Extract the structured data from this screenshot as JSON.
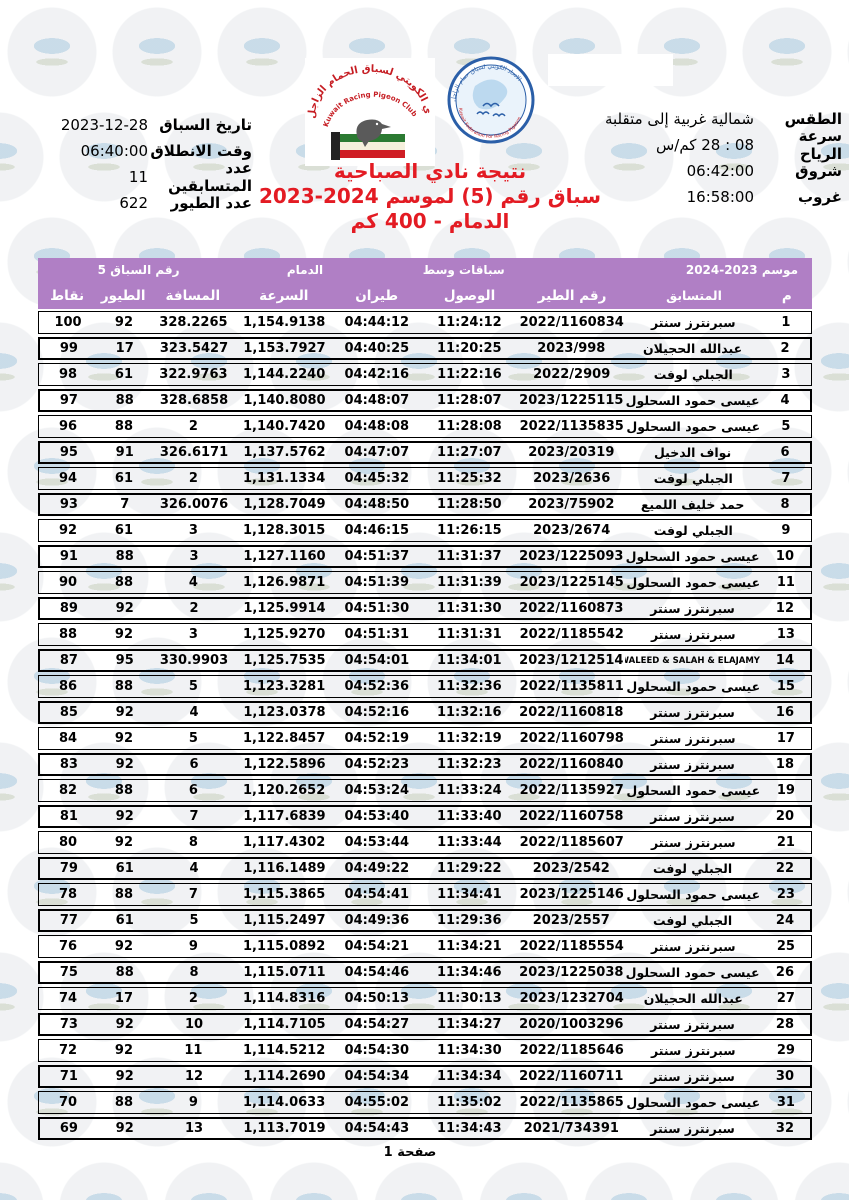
{
  "colors": {
    "accent_purple": "#b07fc5",
    "title_red": "#e31b23"
  },
  "header": {
    "race_info": [
      {
        "label": "تاريخ السباق",
        "value": "2023-12-28"
      },
      {
        "label": "وقت الانطلاق",
        "value": "06:40:00"
      },
      {
        "label": "عدد المتسابقين",
        "value": "11"
      },
      {
        "label": "عدد الطيور",
        "value": "622"
      }
    ],
    "weather": [
      {
        "label": "الطقس",
        "value": "شمالية غربية إلى متقلبة"
      },
      {
        "label": "سرعة الرياح",
        "value": "08 : 28 كم/س"
      },
      {
        "label": "شروق",
        "value": "06:42:00"
      },
      {
        "label": "غروب",
        "value": "16:58:00"
      }
    ],
    "title_lines": [
      "نتيجة نادي الصباحية",
      "سباق رقم (5) لموسم 2024-2023",
      "الدمام  -  400 كم"
    ]
  },
  "logos": {
    "club": {
      "arabic_text": "النادي الكويتي لسباق الحمام الزاجل",
      "english_text": "Kuwait Racing Pigeon Club"
    },
    "federation": {
      "top_text": "الاتحاد الكويتي لسباق حمام الزاجل",
      "bottom_text": "Kuwait Federation For Racing Pigeons"
    }
  },
  "table": {
    "meta": [
      "موسم  2023-2024",
      "سباقات وسط",
      "الدمام",
      "رقم السباق  5"
    ],
    "columns": [
      "م",
      "المتسابق",
      "رقم الطير",
      "الوصول",
      "طيران",
      "السرعة",
      "المسافة",
      "الطيور",
      "نقاط"
    ],
    "column_keys": [
      "rank",
      "competitor",
      "ring-number",
      "arrival",
      "flight-time",
      "speed",
      "distance",
      "birds",
      "points"
    ],
    "rows": [
      [
        "1",
        "سبرنترز سنتر",
        "2022/1160834",
        "11:24:12",
        "04:44:12",
        "1,154.9138",
        "328.2265",
        "92",
        "100"
      ],
      [
        "2",
        "عبدالله الحجيلان",
        "2023/998",
        "11:20:25",
        "04:40:25",
        "1,153.7927",
        "323.5427",
        "17",
        "99"
      ],
      [
        "3",
        "الجبلي لوفت",
        "2022/2909",
        "11:22:16",
        "04:42:16",
        "1,144.2240",
        "322.9763",
        "61",
        "98"
      ],
      [
        "4",
        "عيسى حمود السحلول",
        "2023/1225115",
        "11:28:07",
        "04:48:07",
        "1,140.8080",
        "328.6858",
        "88",
        "97"
      ],
      [
        "5",
        "عيسى حمود السحلول",
        "2022/1135835",
        "11:28:08",
        "04:48:08",
        "1,140.7420",
        "2",
        "88",
        "96"
      ],
      [
        "6",
        "نواف الدخيل",
        "2023/20319",
        "11:27:07",
        "04:47:07",
        "1,137.5762",
        "326.6171",
        "91",
        "95"
      ],
      [
        "7",
        "الجبلي لوفت",
        "2023/2636",
        "11:25:32",
        "04:45:32",
        "1,131.1334",
        "2",
        "61",
        "94"
      ],
      [
        "8",
        "حمد خليف اللميع",
        "2023/75902",
        "11:28:50",
        "04:48:50",
        "1,128.7049",
        "326.0076",
        "7",
        "93"
      ],
      [
        "9",
        "الجبلي لوفت",
        "2023/2674",
        "11:26:15",
        "04:46:15",
        "1,128.3015",
        "3",
        "61",
        "92"
      ],
      [
        "10",
        "عيسى حمود السحلول",
        "2023/1225093",
        "11:31:37",
        "04:51:37",
        "1,127.1160",
        "3",
        "88",
        "91"
      ],
      [
        "11",
        "عيسى حمود السحلول",
        "2023/1225145",
        "11:31:39",
        "04:51:39",
        "1,126.9871",
        "4",
        "88",
        "90"
      ],
      [
        "12",
        "سبرنترز سنتر",
        "2022/1160873",
        "11:31:30",
        "04:51:30",
        "1,125.9914",
        "2",
        "92",
        "89"
      ],
      [
        "13",
        "سبرنترز سنتر",
        "2022/1185542",
        "11:31:31",
        "04:51:31",
        "1,125.9270",
        "3",
        "92",
        "88"
      ],
      [
        "14",
        "WALEED & SALAH & ELAJAMY",
        "2023/1212514",
        "11:34:01",
        "04:54:01",
        "1,125.7535",
        "330.9903",
        "95",
        "87"
      ],
      [
        "15",
        "عيسى حمود السحلول",
        "2022/1135811",
        "11:32:36",
        "04:52:36",
        "1,123.3281",
        "5",
        "88",
        "86"
      ],
      [
        "16",
        "سبرنترز سنتر",
        "2022/1160818",
        "11:32:16",
        "04:52:16",
        "1,123.0378",
        "4",
        "92",
        "85"
      ],
      [
        "17",
        "سبرنترز سنتر",
        "2022/1160798",
        "11:32:19",
        "04:52:19",
        "1,122.8457",
        "5",
        "92",
        "84"
      ],
      [
        "18",
        "سبرنترز سنتر",
        "2022/1160840",
        "11:32:23",
        "04:52:23",
        "1,122.5896",
        "6",
        "92",
        "83"
      ],
      [
        "19",
        "عيسى حمود السحلول",
        "2022/1135927",
        "11:33:24",
        "04:53:24",
        "1,120.2652",
        "6",
        "88",
        "82"
      ],
      [
        "20",
        "سبرنترز سنتر",
        "2022/1160758",
        "11:33:40",
        "04:53:40",
        "1,117.6839",
        "7",
        "92",
        "81"
      ],
      [
        "21",
        "سبرنترز سنتر",
        "2022/1185607",
        "11:33:44",
        "04:53:44",
        "1,117.4302",
        "8",
        "92",
        "80"
      ],
      [
        "22",
        "الجبلي لوفت",
        "2023/2542",
        "11:29:22",
        "04:49:22",
        "1,116.1489",
        "4",
        "61",
        "79"
      ],
      [
        "23",
        "عيسى حمود السحلول",
        "2023/1225146",
        "11:34:41",
        "04:54:41",
        "1,115.3865",
        "7",
        "88",
        "78"
      ],
      [
        "24",
        "الجبلي لوفت",
        "2023/2557",
        "11:29:36",
        "04:49:36",
        "1,115.2497",
        "5",
        "61",
        "77"
      ],
      [
        "25",
        "سبرنترز سنتر",
        "2022/1185554",
        "11:34:21",
        "04:54:21",
        "1,115.0892",
        "9",
        "92",
        "76"
      ],
      [
        "26",
        "عيسى حمود السحلول",
        "2023/1225038",
        "11:34:46",
        "04:54:46",
        "1,115.0711",
        "8",
        "88",
        "75"
      ],
      [
        "27",
        "عبدالله الحجيلان",
        "2023/1232704",
        "11:30:13",
        "04:50:13",
        "1,114.8316",
        "2",
        "17",
        "74"
      ],
      [
        "28",
        "سبرنترز سنتر",
        "2020/1003296",
        "11:34:27",
        "04:54:27",
        "1,114.7105",
        "10",
        "92",
        "73"
      ],
      [
        "29",
        "سبرنترز سنتر",
        "2022/1185646",
        "11:34:30",
        "04:54:30",
        "1,114.5212",
        "11",
        "92",
        "72"
      ],
      [
        "30",
        "سبرنترز سنتر",
        "2022/1160711",
        "11:34:34",
        "04:54:34",
        "1,114.2690",
        "12",
        "92",
        "71"
      ],
      [
        "31",
        "عيسى حمود السحلول",
        "2022/1135865",
        "11:35:02",
        "04:55:02",
        "1,114.0633",
        "9",
        "88",
        "70"
      ],
      [
        "32",
        "سبرنترز سنتر",
        "2021/734391",
        "11:34:43",
        "04:54:43",
        "1,113.7019",
        "13",
        "92",
        "69"
      ]
    ]
  },
  "footer": {
    "page_label": "صفحة 1"
  }
}
